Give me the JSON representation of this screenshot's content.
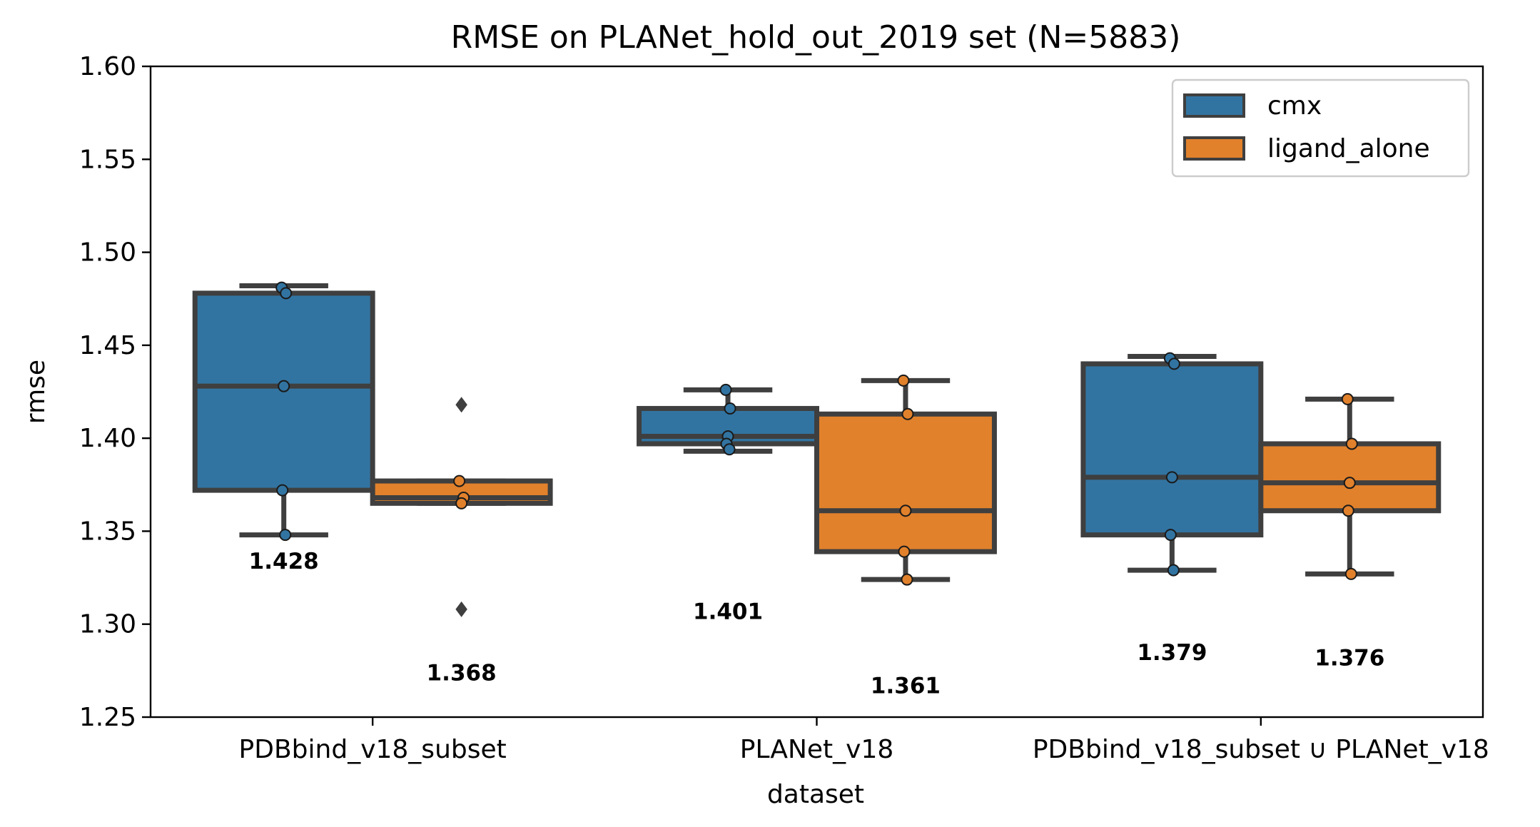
{
  "chart_data": {
    "type": "box",
    "title": "RMSE on PLANet_hold_out_2019 set (N=5883)",
    "xlabel": "dataset",
    "ylabel": "rmse",
    "ylim": [
      1.25,
      1.6
    ],
    "yticks": [
      "1.25",
      "1.30",
      "1.35",
      "1.40",
      "1.45",
      "1.50",
      "1.55",
      "1.60"
    ],
    "categories": [
      "PDBbind_v18_subset",
      "PLANet_v18",
      "PDBbind_v18_subset ∪ PLANet_v18"
    ],
    "legend_position": "top-right",
    "grid": false,
    "series": [
      {
        "name": "cmx",
        "color": "#3274a1",
        "boxes": [
          {
            "whisker_low": 1.348,
            "q1": 1.372,
            "median": 1.428,
            "q3": 1.478,
            "whisker_high": 1.482,
            "points": [
              1.481,
              1.478,
              1.428,
              1.372,
              1.348
            ],
            "outliers": [],
            "median_label": "1.428",
            "label_y": 1.334
          },
          {
            "whisker_low": 1.393,
            "q1": 1.397,
            "median": 1.401,
            "q3": 1.416,
            "whisker_high": 1.426,
            "points": [
              1.426,
              1.416,
              1.401,
              1.397,
              1.394
            ],
            "outliers": [],
            "median_label": "1.401",
            "label_y": 1.307
          },
          {
            "whisker_low": 1.329,
            "q1": 1.348,
            "median": 1.379,
            "q3": 1.44,
            "whisker_high": 1.444,
            "points": [
              1.443,
              1.44,
              1.379,
              1.348,
              1.329
            ],
            "outliers": [],
            "median_label": "1.379",
            "label_y": 1.285
          }
        ]
      },
      {
        "name": "ligand_alone",
        "color": "#e1812c",
        "boxes": [
          {
            "whisker_low": 1.365,
            "q1": 1.365,
            "median": 1.368,
            "q3": 1.377,
            "whisker_high": 1.377,
            "points": [
              1.377,
              1.368,
              1.365
            ],
            "outliers": [
              1.418,
              1.308
            ],
            "median_label": "1.368",
            "label_y": 1.274
          },
          {
            "whisker_low": 1.324,
            "q1": 1.339,
            "median": 1.361,
            "q3": 1.413,
            "whisker_high": 1.431,
            "points": [
              1.431,
              1.413,
              1.361,
              1.339,
              1.324
            ],
            "outliers": [],
            "median_label": "1.361",
            "label_y": 1.267
          },
          {
            "whisker_low": 1.327,
            "q1": 1.361,
            "median": 1.376,
            "q3": 1.397,
            "whisker_high": 1.421,
            "points": [
              1.421,
              1.397,
              1.376,
              1.361,
              1.327
            ],
            "outliers": [],
            "median_label": "1.376",
            "label_y": 1.282
          }
        ]
      }
    ]
  }
}
